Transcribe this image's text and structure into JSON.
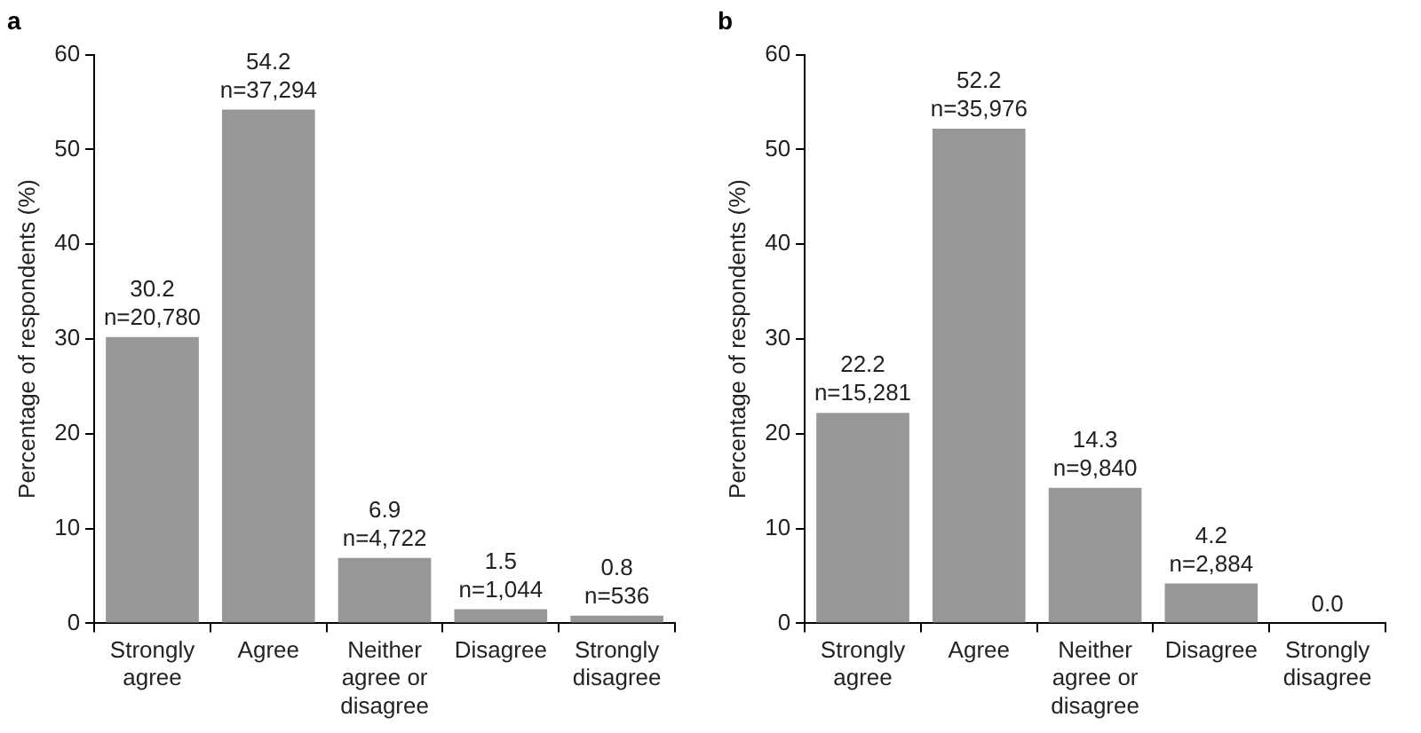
{
  "chart_data": [
    {
      "type": "bar",
      "title": "a",
      "ylabel": "Percentage of respondents (%)",
      "categories": [
        "Strongly agree",
        "Agree",
        "Neither agree or disagree",
        "Disagree",
        "Strongly disagree"
      ],
      "values": [
        30.2,
        54.2,
        6.9,
        1.5,
        0.8
      ],
      "value_labels": [
        "30.2\nn=20,780",
        "54.2\nn=37,294",
        "6.9\nn=4,722",
        "1.5\nn=1,044",
        "0.8\nn=536"
      ],
      "color": "#979797",
      "ylim": [
        0,
        60
      ],
      "yticks": [
        0,
        10,
        20,
        30,
        40,
        50,
        60
      ],
      "grid": false,
      "legend": false
    },
    {
      "type": "bar",
      "title": "b",
      "ylabel": "Percentage of respondents (%)",
      "categories": [
        "Strongly agree",
        "Agree",
        "Neither agree or disagree",
        "Disagree",
        "Strongly disagree"
      ],
      "values": [
        22.2,
        52.2,
        14.3,
        4.2,
        0.0
      ],
      "value_labels": [
        "22.2\nn=15,281",
        "52.2\nn=35,976",
        "14.3\nn=9,840",
        "4.2\nn=2,884",
        "0.0"
      ],
      "color": "#979797",
      "ylim": [
        0,
        60
      ],
      "yticks": [
        0,
        10,
        20,
        30,
        40,
        50,
        60
      ],
      "grid": false,
      "legend": false
    }
  ]
}
